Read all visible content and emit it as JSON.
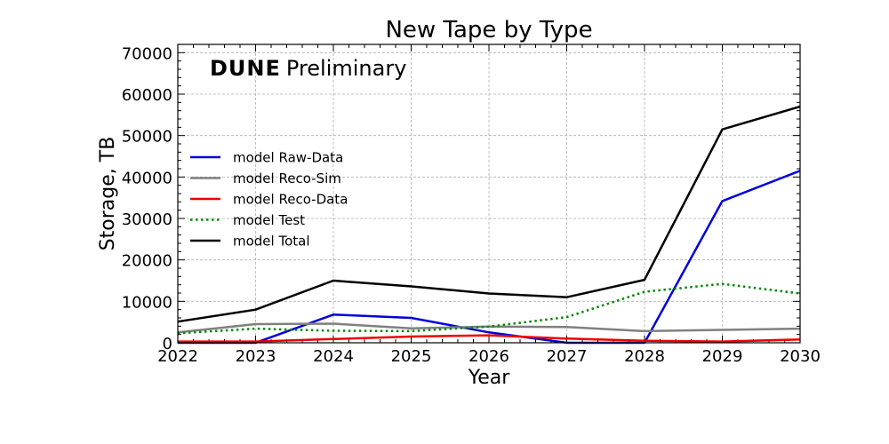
{
  "chart_data": {
    "type": "line",
    "title": "New Tape by Type",
    "xlabel": "Year",
    "ylabel": "Storage, TB",
    "watermark": {
      "bold": "DUNE",
      "normal": "Preliminary"
    },
    "x": [
      2022,
      2023,
      2024,
      2025,
      2026,
      2027,
      2028,
      2029,
      2030
    ],
    "xticks": [
      "2022",
      "2023",
      "2024",
      "2025",
      "2026",
      "2027",
      "2028",
      "2029",
      "2030"
    ],
    "yticks": [
      "0",
      "10000",
      "20000",
      "30000",
      "40000",
      "50000",
      "60000",
      "70000"
    ],
    "xlim": [
      2022,
      2030
    ],
    "ylim": [
      0,
      72000
    ],
    "grid": true,
    "legend_position": "center-left",
    "series": [
      {
        "name": "model Raw-Data",
        "color": "#0000dd",
        "style": "solid",
        "values": [
          0,
          0,
          6800,
          6000,
          2500,
          0,
          0,
          34200,
          41500
        ]
      },
      {
        "name": "model Reco-Sim",
        "color": "#808080",
        "style": "solid",
        "values": [
          2500,
          4500,
          4600,
          3500,
          3900,
          3800,
          2800,
          3100,
          3400
        ]
      },
      {
        "name": "model Reco-Data",
        "color": "#ee0000",
        "style": "solid",
        "values": [
          300,
          300,
          900,
          1500,
          1800,
          1000,
          500,
          300,
          800
        ]
      },
      {
        "name": "model Test",
        "color": "#008800",
        "style": "dotted",
        "values": [
          2300,
          3400,
          2900,
          2800,
          3900,
          6200,
          12300,
          14200,
          11900
        ]
      },
      {
        "name": "model Total",
        "color": "#000000",
        "style": "solid",
        "values": [
          5100,
          8000,
          15000,
          13600,
          11900,
          11000,
          15200,
          51500,
          57000
        ]
      }
    ]
  }
}
